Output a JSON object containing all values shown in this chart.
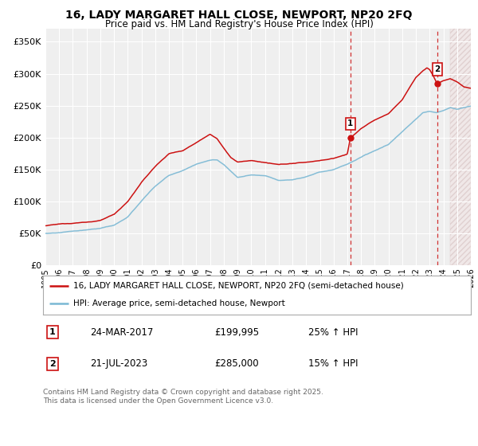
{
  "title": "16, LADY MARGARET HALL CLOSE, NEWPORT, NP20 2FQ",
  "subtitle": "Price paid vs. HM Land Registry's House Price Index (HPI)",
  "ylabel_ticks": [
    "£0",
    "£50K",
    "£100K",
    "£150K",
    "£200K",
    "£250K",
    "£300K",
    "£350K"
  ],
  "ytick_values": [
    0,
    50000,
    100000,
    150000,
    200000,
    250000,
    300000,
    350000
  ],
  "ylim": [
    0,
    370000
  ],
  "xlim_start": 1995.0,
  "xlim_end": 2026.0,
  "hpi_color": "#7ab8d4",
  "price_color": "#cc1111",
  "marker1_date_x": 2017.22,
  "marker1_y": 199995,
  "marker2_date_x": 2023.55,
  "marker2_y": 285000,
  "legend_line1": "16, LADY MARGARET HALL CLOSE, NEWPORT, NP20 2FQ (semi-detached house)",
  "legend_line2": "HPI: Average price, semi-detached house, Newport",
  "annotation1_label": "1",
  "annotation1_date": "24-MAR-2017",
  "annotation1_price": "£199,995",
  "annotation1_hpi": "25% ↑ HPI",
  "annotation2_label": "2",
  "annotation2_date": "21-JUL-2023",
  "annotation2_price": "£285,000",
  "annotation2_hpi": "15% ↑ HPI",
  "footer": "Contains HM Land Registry data © Crown copyright and database right 2025.\nThis data is licensed under the Open Government Licence v3.0.",
  "background_color": "#ffffff",
  "plot_bg_color": "#efefef",
  "hatch_start_x": 2024.5
}
